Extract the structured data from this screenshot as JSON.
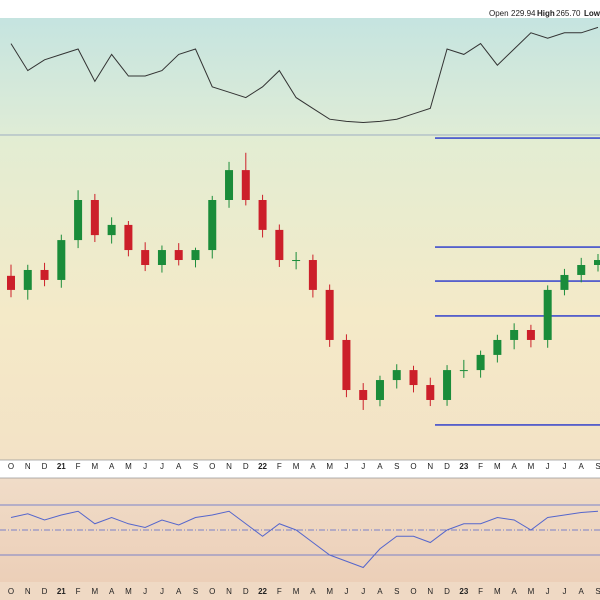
{
  "header": {
    "open_label": "Open",
    "open": "229.94",
    "high_label": "High",
    "high": "265.70",
    "low_label": "Low"
  },
  "chart_data": [
    {
      "type": "candlestick",
      "categories": [
        "O",
        "N",
        "D",
        "21",
        "F",
        "M",
        "A",
        "M",
        "J",
        "J",
        "A",
        "S",
        "O",
        "N",
        "D",
        "22",
        "F",
        "M",
        "A",
        "M",
        "J",
        "J",
        "A",
        "S",
        "O",
        "N",
        "D",
        "23",
        "F",
        "M",
        "A",
        "M",
        "J",
        "J",
        "A",
        "S"
      ],
      "open": [
        235.0,
        228.5,
        237.7,
        233.1,
        251.5,
        270.0,
        253.8,
        258.5,
        246.9,
        240.0,
        246.9,
        242.3,
        246.9,
        270.0,
        283.8,
        270.0,
        256.2,
        242.3,
        242.3,
        228.5,
        205.4,
        182.3,
        177.7,
        186.9,
        191.5,
        184.6,
        177.7,
        191.5,
        191.5,
        198.5,
        205.4,
        210.0,
        205.4,
        228.5,
        235.4,
        240.0
      ],
      "high": [
        240.2,
        240.1,
        241.0,
        254.0,
        274.5,
        272.8,
        262.0,
        260.3,
        250.5,
        249.0,
        250.1,
        248.0,
        271.9,
        287.6,
        291.8,
        272.4,
        258.7,
        246.0,
        244.8,
        231.0,
        208.0,
        185.5,
        188.9,
        194.2,
        193.5,
        188.0,
        193.8,
        196.2,
        200.5,
        207.8,
        213.1,
        212.4,
        230.6,
        238.2,
        243.3,
        245.1
      ],
      "low": [
        225.1,
        224.0,
        230.2,
        229.5,
        247.8,
        250.6,
        249.9,
        244.0,
        237.2,
        236.5,
        239.8,
        238.9,
        243.0,
        266.4,
        267.5,
        252.7,
        239.1,
        238.0,
        225.0,
        202.2,
        179.0,
        173.1,
        174.8,
        183.0,
        181.2,
        174.9,
        175.0,
        187.9,
        188.0,
        195.0,
        201.1,
        202.0,
        201.8,
        226.0,
        232.0,
        237.0
      ],
      "close": [
        228.5,
        237.7,
        233.1,
        251.5,
        270.0,
        253.8,
        258.5,
        246.9,
        240.0,
        246.9,
        242.3,
        246.9,
        270.0,
        283.8,
        270.0,
        256.2,
        242.3,
        242.3,
        228.5,
        205.4,
        182.3,
        177.7,
        186.9,
        191.5,
        184.6,
        177.7,
        191.5,
        191.5,
        198.5,
        205.4,
        210.0,
        205.4,
        228.5,
        235.4,
        240.0,
        242.3
      ],
      "ylim": [
        150,
        300
      ],
      "levels": [
        298.6,
        248.3,
        232.6,
        216.5,
        166.2
      ],
      "up_color": "#1a8c3a",
      "down_color": "#cc1f2a",
      "level_color": "#2233cc"
    },
    {
      "type": "line",
      "panel": "top",
      "values": [
        80,
        55,
        65,
        70,
        75,
        45,
        70,
        50,
        50,
        55,
        70,
        75,
        40,
        35,
        30,
        40,
        55,
        30,
        20,
        10,
        8,
        7,
        8,
        10,
        15,
        20,
        75,
        70,
        80,
        60,
        75,
        90,
        85,
        90,
        90,
        95
      ],
      "ylim": [
        0,
        100
      ],
      "color": "#333333"
    },
    {
      "type": "line",
      "panel": "bottom",
      "values": [
        60,
        63,
        58,
        62,
        65,
        55,
        60,
        55,
        52,
        58,
        54,
        60,
        62,
        65,
        55,
        45,
        55,
        50,
        40,
        30,
        25,
        20,
        35,
        45,
        45,
        40,
        50,
        55,
        55,
        60,
        58,
        50,
        60,
        62,
        64,
        65
      ],
      "ylim": [
        10,
        90
      ],
      "color": "#5566cc",
      "ref_levels": [
        70,
        50,
        30
      ]
    }
  ]
}
